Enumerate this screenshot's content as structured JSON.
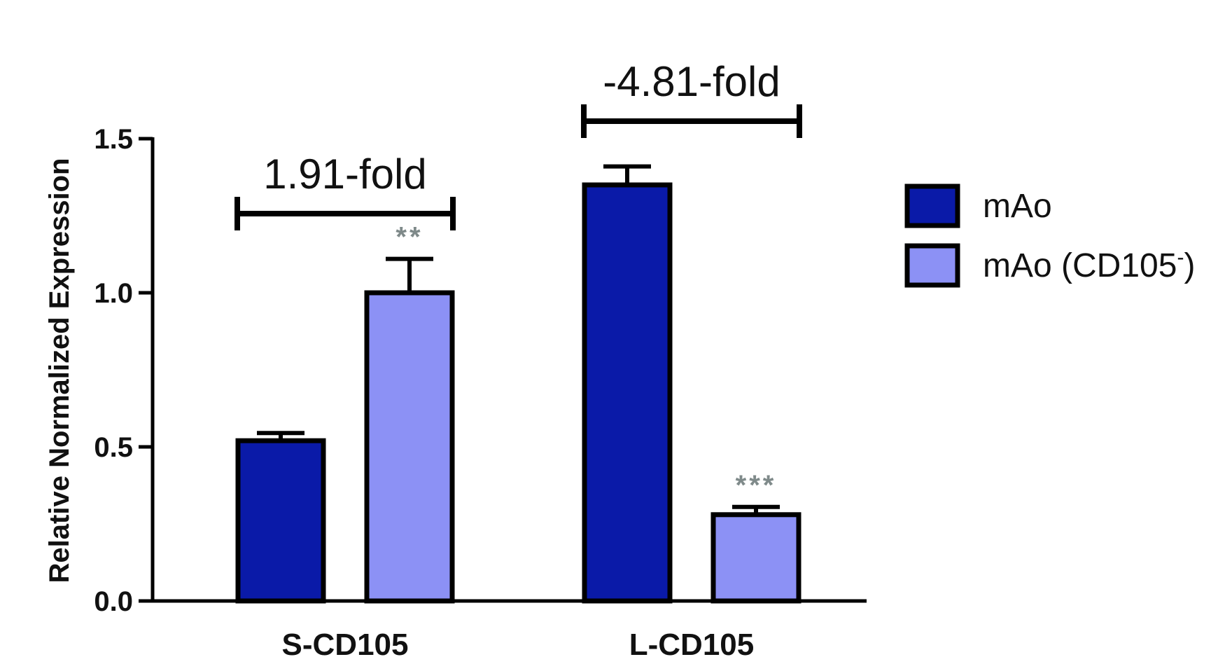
{
  "chart_data": {
    "type": "bar",
    "categories": [
      "S-CD105",
      "L-CD105"
    ],
    "ylabel": "Relative Normalized Expression",
    "xlabel": "",
    "ylim": [
      0,
      1.5
    ],
    "yticks": [
      "0.0",
      "0.5",
      "1.0",
      "1.5"
    ],
    "ytick_values": [
      0,
      0.5,
      1.0,
      1.5
    ],
    "series": [
      {
        "name": "mAo",
        "color": "#0a1aa8",
        "values": [
          0.52,
          1.35
        ],
        "errors": [
          0.025,
          0.06
        ]
      },
      {
        "name": "mAo (CD105",
        "name_sup": "-",
        "name_suffix": ")",
        "color": "#8c91f5",
        "values": [
          1.0,
          0.28
        ],
        "errors": [
          0.11,
          0.025
        ]
      }
    ],
    "annotations": {
      "significance": [
        {
          "category": 0,
          "series": 1,
          "text": "**"
        },
        {
          "category": 1,
          "series": 1,
          "text": "***"
        }
      ],
      "fold_changes": [
        {
          "category": 0,
          "text": "1.91-fold"
        },
        {
          "category": 1,
          "text": "-4.81-fold"
        }
      ]
    },
    "legend": "right",
    "grid": false
  }
}
